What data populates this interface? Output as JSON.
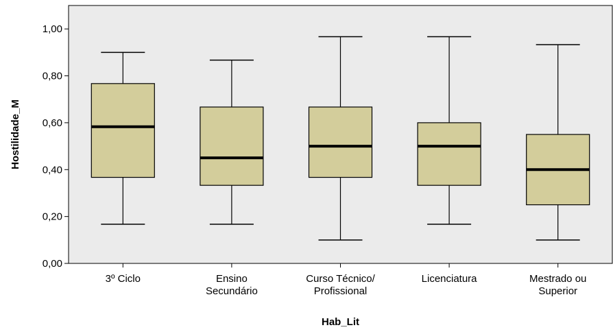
{
  "chart_data": {
    "type": "boxplot",
    "title": "",
    "xlabel": "Hab_Lit",
    "ylabel": "Hostilidade_M",
    "ylim": [
      0,
      1.1
    ],
    "grid": false,
    "yticks": [
      {
        "value": 0.0,
        "label": "0,00"
      },
      {
        "value": 0.2,
        "label": "0,20"
      },
      {
        "value": 0.4,
        "label": "0,40"
      },
      {
        "value": 0.6,
        "label": "0,60"
      },
      {
        "value": 0.8,
        "label": "0,80"
      },
      {
        "value": 1.0,
        "label": "1,00"
      }
    ],
    "categories": [
      {
        "lines": [
          "3º Ciclo"
        ],
        "min": 0.167,
        "q1": 0.367,
        "median": 0.583,
        "q3": 0.767,
        "max": 0.9
      },
      {
        "lines": [
          "Ensino",
          "Secundário"
        ],
        "min": 0.167,
        "q1": 0.333,
        "median": 0.45,
        "q3": 0.667,
        "max": 0.867
      },
      {
        "lines": [
          "Curso Técnico/",
          "Profissional"
        ],
        "min": 0.1,
        "q1": 0.367,
        "median": 0.5,
        "q3": 0.667,
        "max": 0.967
      },
      {
        "lines": [
          "Licenciatura"
        ],
        "min": 0.167,
        "q1": 0.333,
        "median": 0.5,
        "q3": 0.6,
        "max": 0.967
      },
      {
        "lines": [
          "Mestrado ou",
          "Superior"
        ],
        "min": 0.1,
        "q1": 0.25,
        "median": 0.4,
        "q3": 0.55,
        "max": 0.933
      }
    ],
    "colors": {
      "plot_background": "#ebebeb",
      "box_fill": "#d3cd9b",
      "line": "#000000"
    }
  }
}
